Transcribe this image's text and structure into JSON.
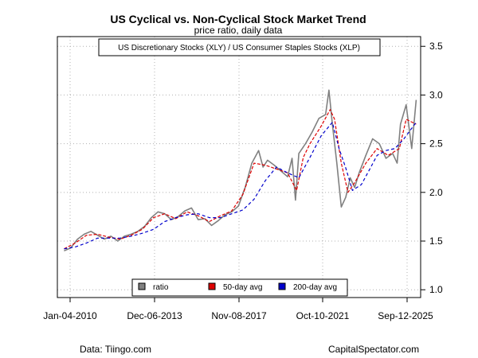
{
  "chart_data": {
    "type": "line",
    "title": "US Cyclical vs. Non-Cyclical Stock Market Trend",
    "subtitle": "price ratio, daily data",
    "annotation": "US Discretionary Stocks (XLY) / US Consumer Staples Stocks (XLP)",
    "xlabel": "",
    "ylabel": "",
    "x_tick_labels": [
      "Jan-04-2010",
      "Dec-06-2013",
      "Nov-08-2017",
      "Oct-10-2021",
      "Sep-12-2025"
    ],
    "y_ticks": [
      1.0,
      1.5,
      2.0,
      2.5,
      3.0,
      3.5
    ],
    "y_tick_labels": [
      "1.0",
      "1.5",
      "2.0",
      "2.5",
      "3.0",
      "3.5"
    ],
    "ylim": [
      0.92,
      3.6
    ],
    "xlim": [
      2009.7,
      2025.95
    ],
    "grid": true,
    "legend_position": "bottom-center",
    "series": [
      {
        "name": "ratio",
        "color": "#808080",
        "x": [
          2010.0,
          2010.3,
          2010.6,
          2010.9,
          2011.2,
          2011.5,
          2011.8,
          2012.1,
          2012.4,
          2012.7,
          2013.0,
          2013.3,
          2013.6,
          2013.9,
          2014.2,
          2014.5,
          2014.8,
          2015.1,
          2015.4,
          2015.7,
          2016.0,
          2016.3,
          2016.6,
          2016.9,
          2017.2,
          2017.5,
          2017.8,
          2018.1,
          2018.4,
          2018.7,
          2018.9,
          2019.1,
          2019.4,
          2019.7,
          2020.0,
          2020.2,
          2020.35,
          2020.5,
          2020.8,
          2021.1,
          2021.4,
          2021.7,
          2021.85,
          2022.0,
          2022.2,
          2022.4,
          2022.6,
          2022.8,
          2023.0,
          2023.2,
          2023.5,
          2023.8,
          2024.1,
          2024.4,
          2024.7,
          2024.9,
          2025.05,
          2025.3,
          2025.55,
          2025.75
        ],
        "values": [
          1.4,
          1.43,
          1.52,
          1.57,
          1.6,
          1.56,
          1.52,
          1.55,
          1.5,
          1.55,
          1.57,
          1.6,
          1.65,
          1.74,
          1.8,
          1.78,
          1.72,
          1.75,
          1.81,
          1.84,
          1.72,
          1.73,
          1.66,
          1.71,
          1.77,
          1.8,
          1.86,
          2.05,
          2.3,
          2.43,
          2.26,
          2.33,
          2.28,
          2.22,
          2.16,
          2.35,
          1.92,
          2.4,
          2.5,
          2.62,
          2.76,
          2.8,
          3.05,
          2.7,
          2.3,
          1.85,
          1.95,
          2.15,
          2.05,
          2.2,
          2.38,
          2.55,
          2.5,
          2.35,
          2.4,
          2.3,
          2.7,
          2.9,
          2.45,
          2.95
        ]
      },
      {
        "name": "50-day avg",
        "color": "#dd0000",
        "x": [
          2010.0,
          2010.5,
          2011.0,
          2011.5,
          2012.0,
          2012.5,
          2013.0,
          2013.5,
          2014.0,
          2014.5,
          2015.0,
          2015.5,
          2016.0,
          2016.5,
          2017.0,
          2017.5,
          2018.0,
          2018.5,
          2019.0,
          2019.5,
          2020.0,
          2020.4,
          2020.7,
          2021.0,
          2021.5,
          2021.9,
          2022.1,
          2022.4,
          2022.7,
          2023.0,
          2023.5,
          2024.0,
          2024.5,
          2025.0,
          2025.3,
          2025.75
        ],
        "values": [
          1.42,
          1.48,
          1.56,
          1.57,
          1.54,
          1.52,
          1.56,
          1.62,
          1.74,
          1.78,
          1.73,
          1.8,
          1.76,
          1.7,
          1.76,
          1.81,
          1.98,
          2.3,
          2.28,
          2.24,
          2.2,
          2.02,
          2.36,
          2.5,
          2.68,
          2.85,
          2.75,
          2.3,
          2.0,
          2.1,
          2.3,
          2.45,
          2.38,
          2.45,
          2.75,
          2.7
        ]
      },
      {
        "name": "200-day avg",
        "color": "#0000cc",
        "x": [
          2010.0,
          2010.5,
          2011.0,
          2011.5,
          2012.0,
          2012.5,
          2013.0,
          2013.5,
          2014.0,
          2014.5,
          2015.0,
          2015.5,
          2016.0,
          2016.5,
          2017.0,
          2017.5,
          2018.0,
          2018.5,
          2019.0,
          2019.5,
          2020.0,
          2020.5,
          2021.0,
          2021.5,
          2022.0,
          2022.3,
          2022.6,
          2022.9,
          2023.3,
          2023.7,
          2024.0,
          2024.4,
          2024.8,
          2025.2,
          2025.75
        ],
        "values": [
          1.42,
          1.44,
          1.48,
          1.53,
          1.53,
          1.53,
          1.55,
          1.58,
          1.62,
          1.7,
          1.74,
          1.77,
          1.78,
          1.74,
          1.74,
          1.78,
          1.82,
          1.93,
          2.12,
          2.26,
          2.2,
          2.15,
          2.36,
          2.58,
          2.72,
          2.45,
          2.25,
          2.02,
          2.08,
          2.25,
          2.38,
          2.43,
          2.45,
          2.55,
          2.72
        ]
      }
    ]
  },
  "footer": {
    "left": "Data: Tiingo.com",
    "right": "CapitalSpectator.com"
  }
}
